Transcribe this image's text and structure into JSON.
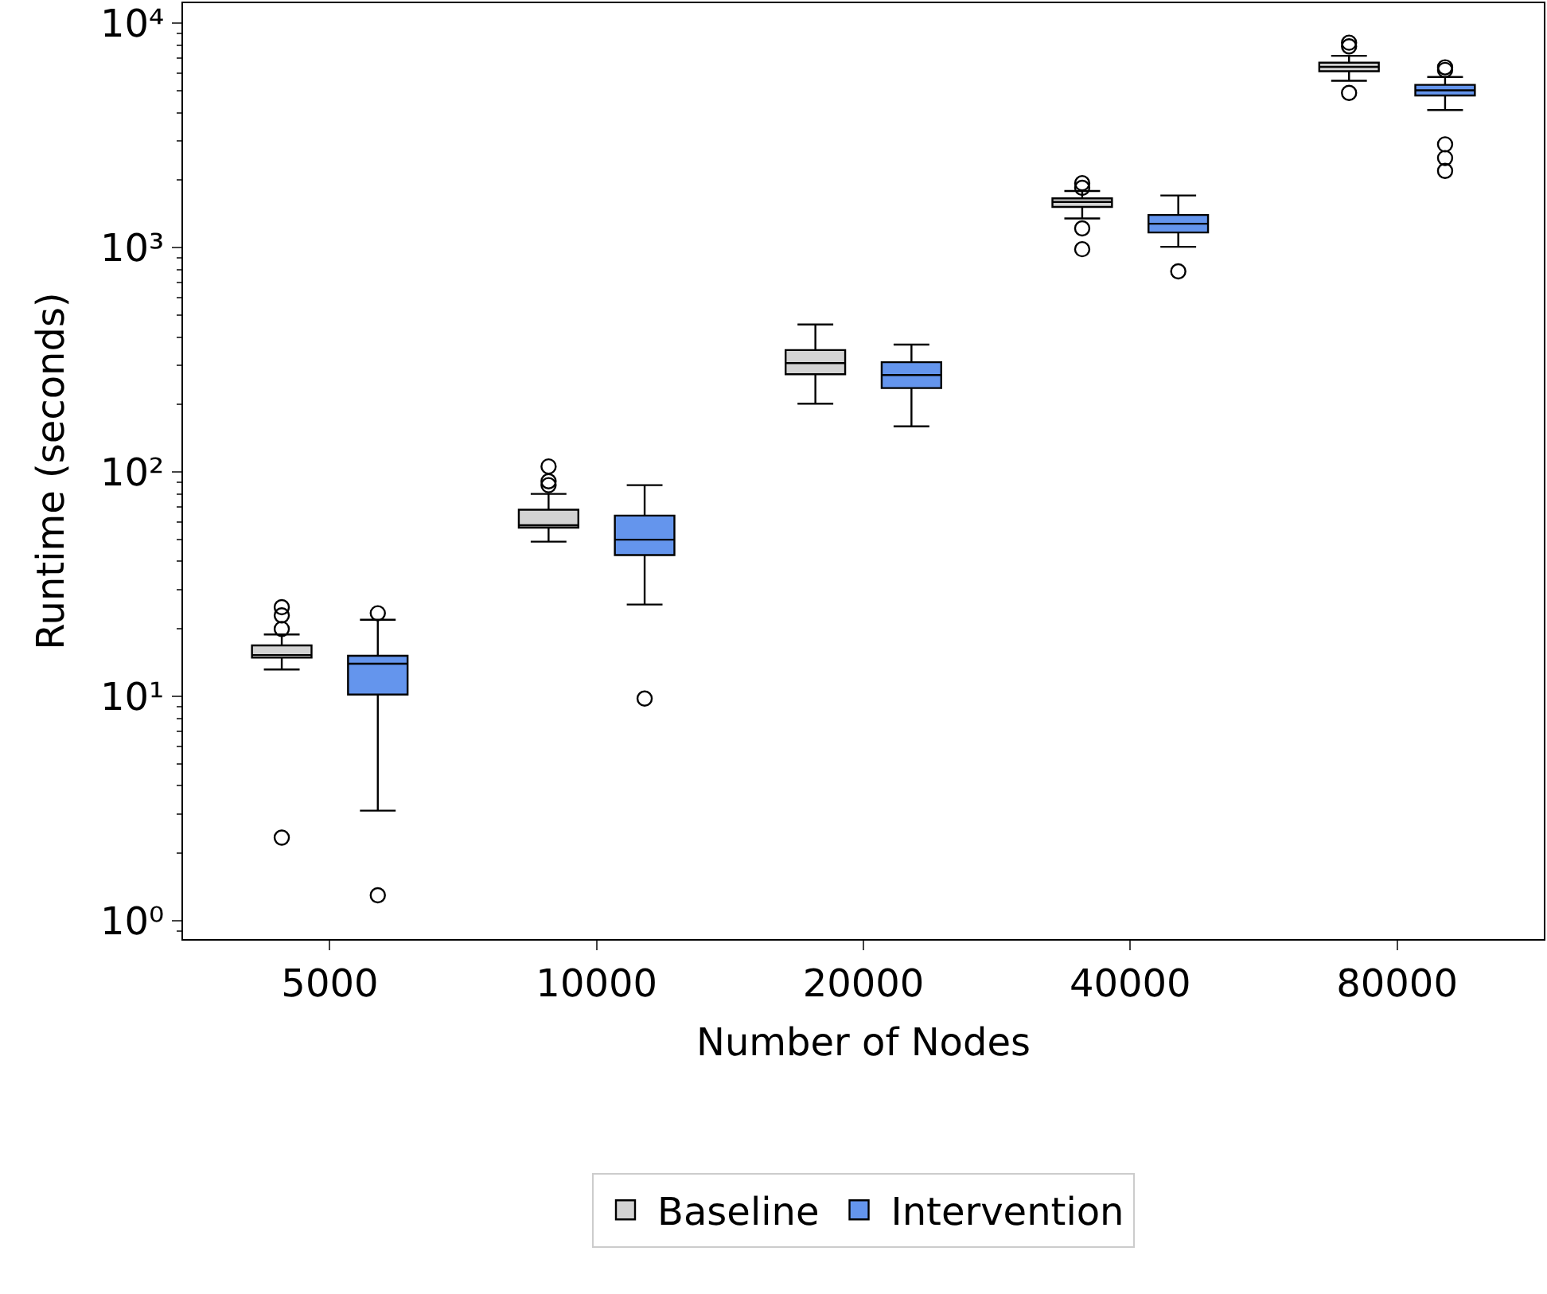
{
  "chart_data": {
    "type": "box",
    "xlabel": "Number of Nodes",
    "ylabel": "Runtime (seconds)",
    "categories": [
      "5000",
      "10000",
      "20000",
      "40000",
      "80000"
    ],
    "log": "y",
    "ylim": [
      0.83,
      12300
    ],
    "yticks": [
      {
        "value": 1,
        "label": "10⁰"
      },
      {
        "value": 10,
        "label": "10¹"
      },
      {
        "value": 100,
        "label": "10²"
      },
      {
        "value": 1000,
        "label": "10³"
      },
      {
        "value": 10000,
        "label": "10⁴"
      }
    ],
    "legend": "bottom",
    "series": [
      {
        "name": "Baseline",
        "color": "#d3d3d3",
        "boxes": [
          {
            "low": 13.2,
            "q1": 14.9,
            "median": 15.3,
            "q3": 16.9,
            "high": 18.9,
            "outliers": [
              25,
              23,
              20,
              2.35
            ]
          },
          {
            "low": 49,
            "q1": 56.6,
            "median": 58,
            "q3": 68,
            "high": 80,
            "outliers": [
              106,
              91,
              87.5
            ]
          },
          {
            "low": 202,
            "q1": 273,
            "median": 306,
            "q3": 350,
            "high": 455
          },
          {
            "low": 1350,
            "q1": 1520,
            "median": 1600,
            "q3": 1660,
            "high": 1790,
            "outliers": [
              1940,
              1850,
              1220,
              985
            ]
          },
          {
            "low": 5550,
            "q1": 6120,
            "median": 6400,
            "q3": 6680,
            "high": 7170,
            "outliers": [
              8200,
              7900,
              4900
            ]
          }
        ]
      },
      {
        "name": "Intervention",
        "color": "#6495ed",
        "boxes": [
          {
            "low": 3.1,
            "q1": 10.2,
            "median": 14,
            "q3": 15.2,
            "high": 22,
            "outliers": [
              23.5,
              1.3
            ]
          },
          {
            "low": 25.7,
            "q1": 42.7,
            "median": 50,
            "q3": 64,
            "high": 87.5,
            "outliers": [
              9.8
            ]
          },
          {
            "low": 160,
            "q1": 237,
            "median": 271,
            "q3": 309,
            "high": 370
          },
          {
            "low": 1010,
            "q1": 1170,
            "median": 1280,
            "q3": 1400,
            "high": 1710,
            "outliers": [
              785
            ]
          },
          {
            "low": 4110,
            "q1": 4770,
            "median": 5030,
            "q3": 5320,
            "high": 5770,
            "outliers": [
              6370,
              6200,
              2890,
              2510,
              2200
            ]
          }
        ]
      }
    ]
  }
}
